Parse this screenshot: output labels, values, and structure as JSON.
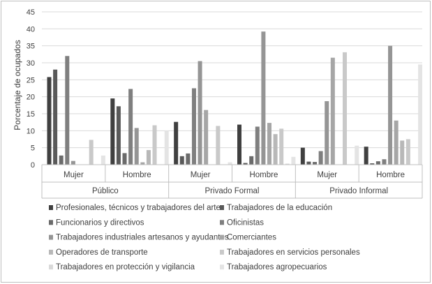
{
  "chart_data": {
    "type": "bar",
    "ylabel": "Porcentaje de ocupados",
    "ylim": [
      0,
      45
    ],
    "yticks": [
      0,
      5,
      10,
      15,
      20,
      25,
      30,
      35,
      40,
      45
    ],
    "grid": true,
    "legend_position": "bottom",
    "groups": [
      "Público",
      "Privado Formal",
      "Privado Informal"
    ],
    "subcategories": [
      "Mujer",
      "Hombre"
    ],
    "categories": [
      "Público - Mujer",
      "Público - Hombre",
      "Privado Formal - Mujer",
      "Privado Formal - Hombre",
      "Privado Informal - Mujer",
      "Privado Informal - Hombre"
    ],
    "series": [
      {
        "name": "Profesionales, técnicos y trabajadores del arte",
        "color": "#404040",
        "values": [
          25.8,
          19.5,
          12.6,
          11.8,
          5.0,
          5.3
        ]
      },
      {
        "name": "Trabajadores de la educación",
        "color": "#595959",
        "values": [
          28.0,
          17.2,
          2.5,
          0.5,
          0.9,
          0.4
        ]
      },
      {
        "name": "Funcionarios y directivos",
        "color": "#6b6b6b",
        "values": [
          2.7,
          3.4,
          3.3,
          2.5,
          0.8,
          1.0
        ]
      },
      {
        "name": "Oficinistas",
        "color": "#7f7f7f",
        "values": [
          32.0,
          22.3,
          22.5,
          11.2,
          4.0,
          1.6
        ]
      },
      {
        "name": "Trabajadores industriales artesanos y ayudantes",
        "color": "#959595",
        "values": [
          1.1,
          10.8,
          30.5,
          39.2,
          18.7,
          35.0
        ]
      },
      {
        "name": "Comerciantes",
        "color": "#a6a6a6",
        "values": [
          0.0,
          0.7,
          16.1,
          12.3,
          31.5,
          13.0
        ]
      },
      {
        "name": "Operadores de transporte",
        "color": "#b8b8b8",
        "values": [
          0.0,
          4.3,
          0.0,
          9.0,
          0.0,
          7.1
        ]
      },
      {
        "name": "Trabajadores en servicios personales",
        "color": "#c9c9c9",
        "values": [
          7.3,
          11.6,
          11.4,
          10.6,
          33.1,
          7.5
        ]
      },
      {
        "name": "Trabajadores en protección y vigilancia",
        "color": "#d9d9d9",
        "values": [
          0.0,
          0.0,
          0.0,
          0.3,
          0.0,
          0.0
        ]
      },
      {
        "name": "Trabajadores agropecuarios",
        "color": "#e4e4e4",
        "values": [
          2.7,
          10.0,
          0.7,
          2.3,
          5.6,
          29.5
        ]
      }
    ]
  }
}
